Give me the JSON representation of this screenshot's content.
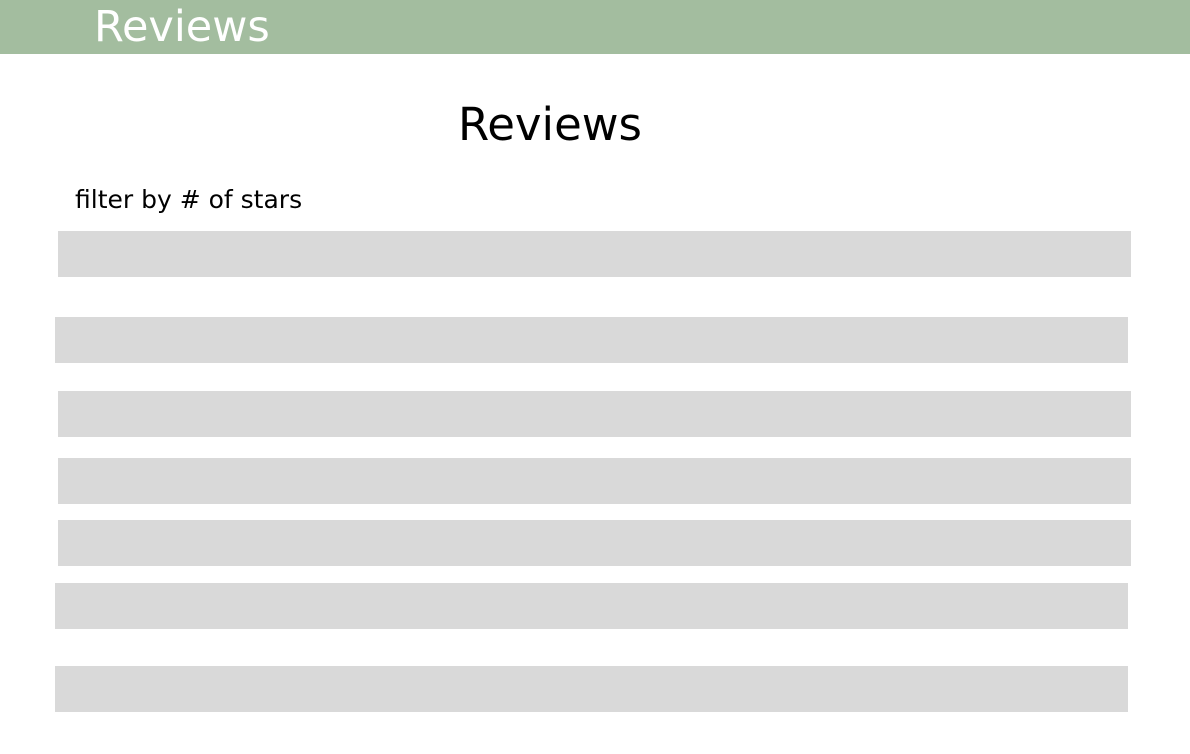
{
  "header": {
    "title": "Reviews",
    "background_color": "#a3bd9f",
    "text_color": "#ffffff"
  },
  "main": {
    "title": "Reviews",
    "filter_label": "filter by # of stars",
    "placeholder_color": "#d9d9d9",
    "review_rows": [
      {},
      {},
      {},
      {},
      {},
      {},
      {}
    ]
  }
}
